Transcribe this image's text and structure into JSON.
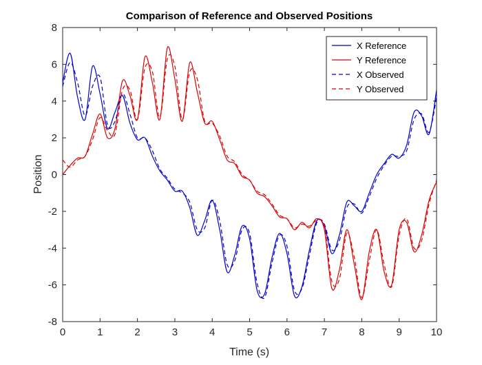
{
  "chart_data": {
    "type": "line",
    "title": "Comparison of Reference and Observed Positions",
    "xlabel": "Time (s)",
    "ylabel": "Position",
    "xlim": [
      0,
      10
    ],
    "ylim": [
      -8,
      8
    ],
    "xticks": [
      0,
      1,
      2,
      3,
      4,
      5,
      6,
      7,
      8,
      9,
      10
    ],
    "xtick_labels": [
      "0",
      "1",
      "2",
      "3",
      "4",
      "5",
      "6",
      "7",
      "8",
      "9",
      "10"
    ],
    "yticks": [
      -8,
      -6,
      -4,
      -2,
      0,
      2,
      4,
      6,
      8
    ],
    "ytick_labels": [
      "-8",
      "-6",
      "-4",
      "-2",
      "0",
      "2",
      "4",
      "6",
      "8"
    ],
    "grid": false,
    "legend_position": "top-right",
    "x": [
      0,
      0.2,
      0.4,
      0.6,
      0.8,
      1.0,
      1.2,
      1.4,
      1.6,
      1.8,
      2.0,
      2.2,
      2.4,
      2.6,
      2.8,
      3.0,
      3.2,
      3.4,
      3.6,
      3.8,
      4.0,
      4.2,
      4.4,
      4.6,
      4.8,
      5.0,
      5.2,
      5.4,
      5.6,
      5.8,
      6.0,
      6.2,
      6.4,
      6.6,
      6.8,
      7.0,
      7.2,
      7.4,
      7.6,
      7.8,
      8.0,
      8.2,
      8.4,
      8.6,
      8.8,
      9.0,
      9.2,
      9.4,
      9.6,
      9.8,
      10.0
    ],
    "series": [
      {
        "name": "X Reference",
        "color": "#0000cc",
        "dash": "solid",
        "values": [
          5.0,
          6.6,
          4.2,
          3.0,
          5.9,
          4.4,
          2.5,
          3.4,
          4.3,
          2.8,
          1.9,
          2.0,
          1.0,
          0.2,
          -0.3,
          -0.9,
          -0.9,
          -1.8,
          -3.3,
          -2.5,
          -1.4,
          -3.0,
          -5.3,
          -4.4,
          -2.8,
          -3.5,
          -6.3,
          -6.5,
          -4.5,
          -3.2,
          -4.3,
          -6.6,
          -6.1,
          -4.1,
          -2.5,
          -2.8,
          -4.3,
          -3.3,
          -1.5,
          -1.7,
          -2.0,
          -1.0,
          0.0,
          0.6,
          1.1,
          0.9,
          1.6,
          3.4,
          3.2,
          2.2,
          4.6
        ]
      },
      {
        "name": "Y Reference",
        "color": "#dd0000",
        "dash": "solid",
        "values": [
          0.0,
          0.5,
          0.9,
          1.0,
          2.2,
          3.3,
          2.0,
          2.5,
          5.1,
          4.3,
          3.0,
          6.4,
          5.0,
          3.0,
          6.9,
          5.2,
          2.9,
          6.1,
          4.5,
          2.8,
          2.9,
          1.9,
          0.8,
          0.6,
          -0.1,
          -0.3,
          -1.0,
          -1.2,
          -1.7,
          -2.3,
          -2.4,
          -3.0,
          -2.6,
          -2.9,
          -2.4,
          -3.0,
          -6.2,
          -5.2,
          -3.0,
          -4.9,
          -6.8,
          -4.2,
          -3.0,
          -5.3,
          -6.0,
          -3.0,
          -2.6,
          -4.2,
          -3.3,
          -1.4,
          -0.4
        ]
      },
      {
        "name": "X Observed",
        "color": "#0000cc",
        "dash": "dashed",
        "values": [
          4.8,
          6.1,
          5.0,
          3.2,
          4.8,
          5.3,
          2.7,
          2.9,
          4.4,
          3.3,
          2.0,
          2.0,
          1.3,
          0.3,
          -0.2,
          -0.8,
          -1.0,
          -1.5,
          -3.0,
          -2.9,
          -1.4,
          -2.5,
          -4.9,
          -4.7,
          -3.0,
          -3.2,
          -5.9,
          -6.7,
          -4.8,
          -3.3,
          -3.9,
          -6.3,
          -6.2,
          -4.4,
          -2.6,
          -2.7,
          -4.1,
          -3.6,
          -1.8,
          -1.6,
          -2.1,
          -1.2,
          -0.2,
          0.5,
          1.0,
          1.0,
          1.3,
          3.0,
          3.3,
          2.3,
          4.2
        ]
      },
      {
        "name": "Y Observed",
        "color": "#dd0000",
        "dash": "dashed",
        "values": [
          0.8,
          0.4,
          0.8,
          1.0,
          1.9,
          3.1,
          2.4,
          2.2,
          4.6,
          4.6,
          3.0,
          5.8,
          5.6,
          3.1,
          6.3,
          5.9,
          3.0,
          5.6,
          5.2,
          2.9,
          2.8,
          2.1,
          1.0,
          0.7,
          0.0,
          -0.3,
          -0.9,
          -1.1,
          -1.6,
          -2.2,
          -2.4,
          -2.9,
          -2.7,
          -2.8,
          -2.5,
          -2.8,
          -5.8,
          -5.7,
          -3.2,
          -4.5,
          -6.7,
          -4.7,
          -3.0,
          -4.9,
          -6.1,
          -3.3,
          -2.4,
          -4.0,
          -3.6,
          -1.6,
          -0.3
        ]
      }
    ]
  }
}
